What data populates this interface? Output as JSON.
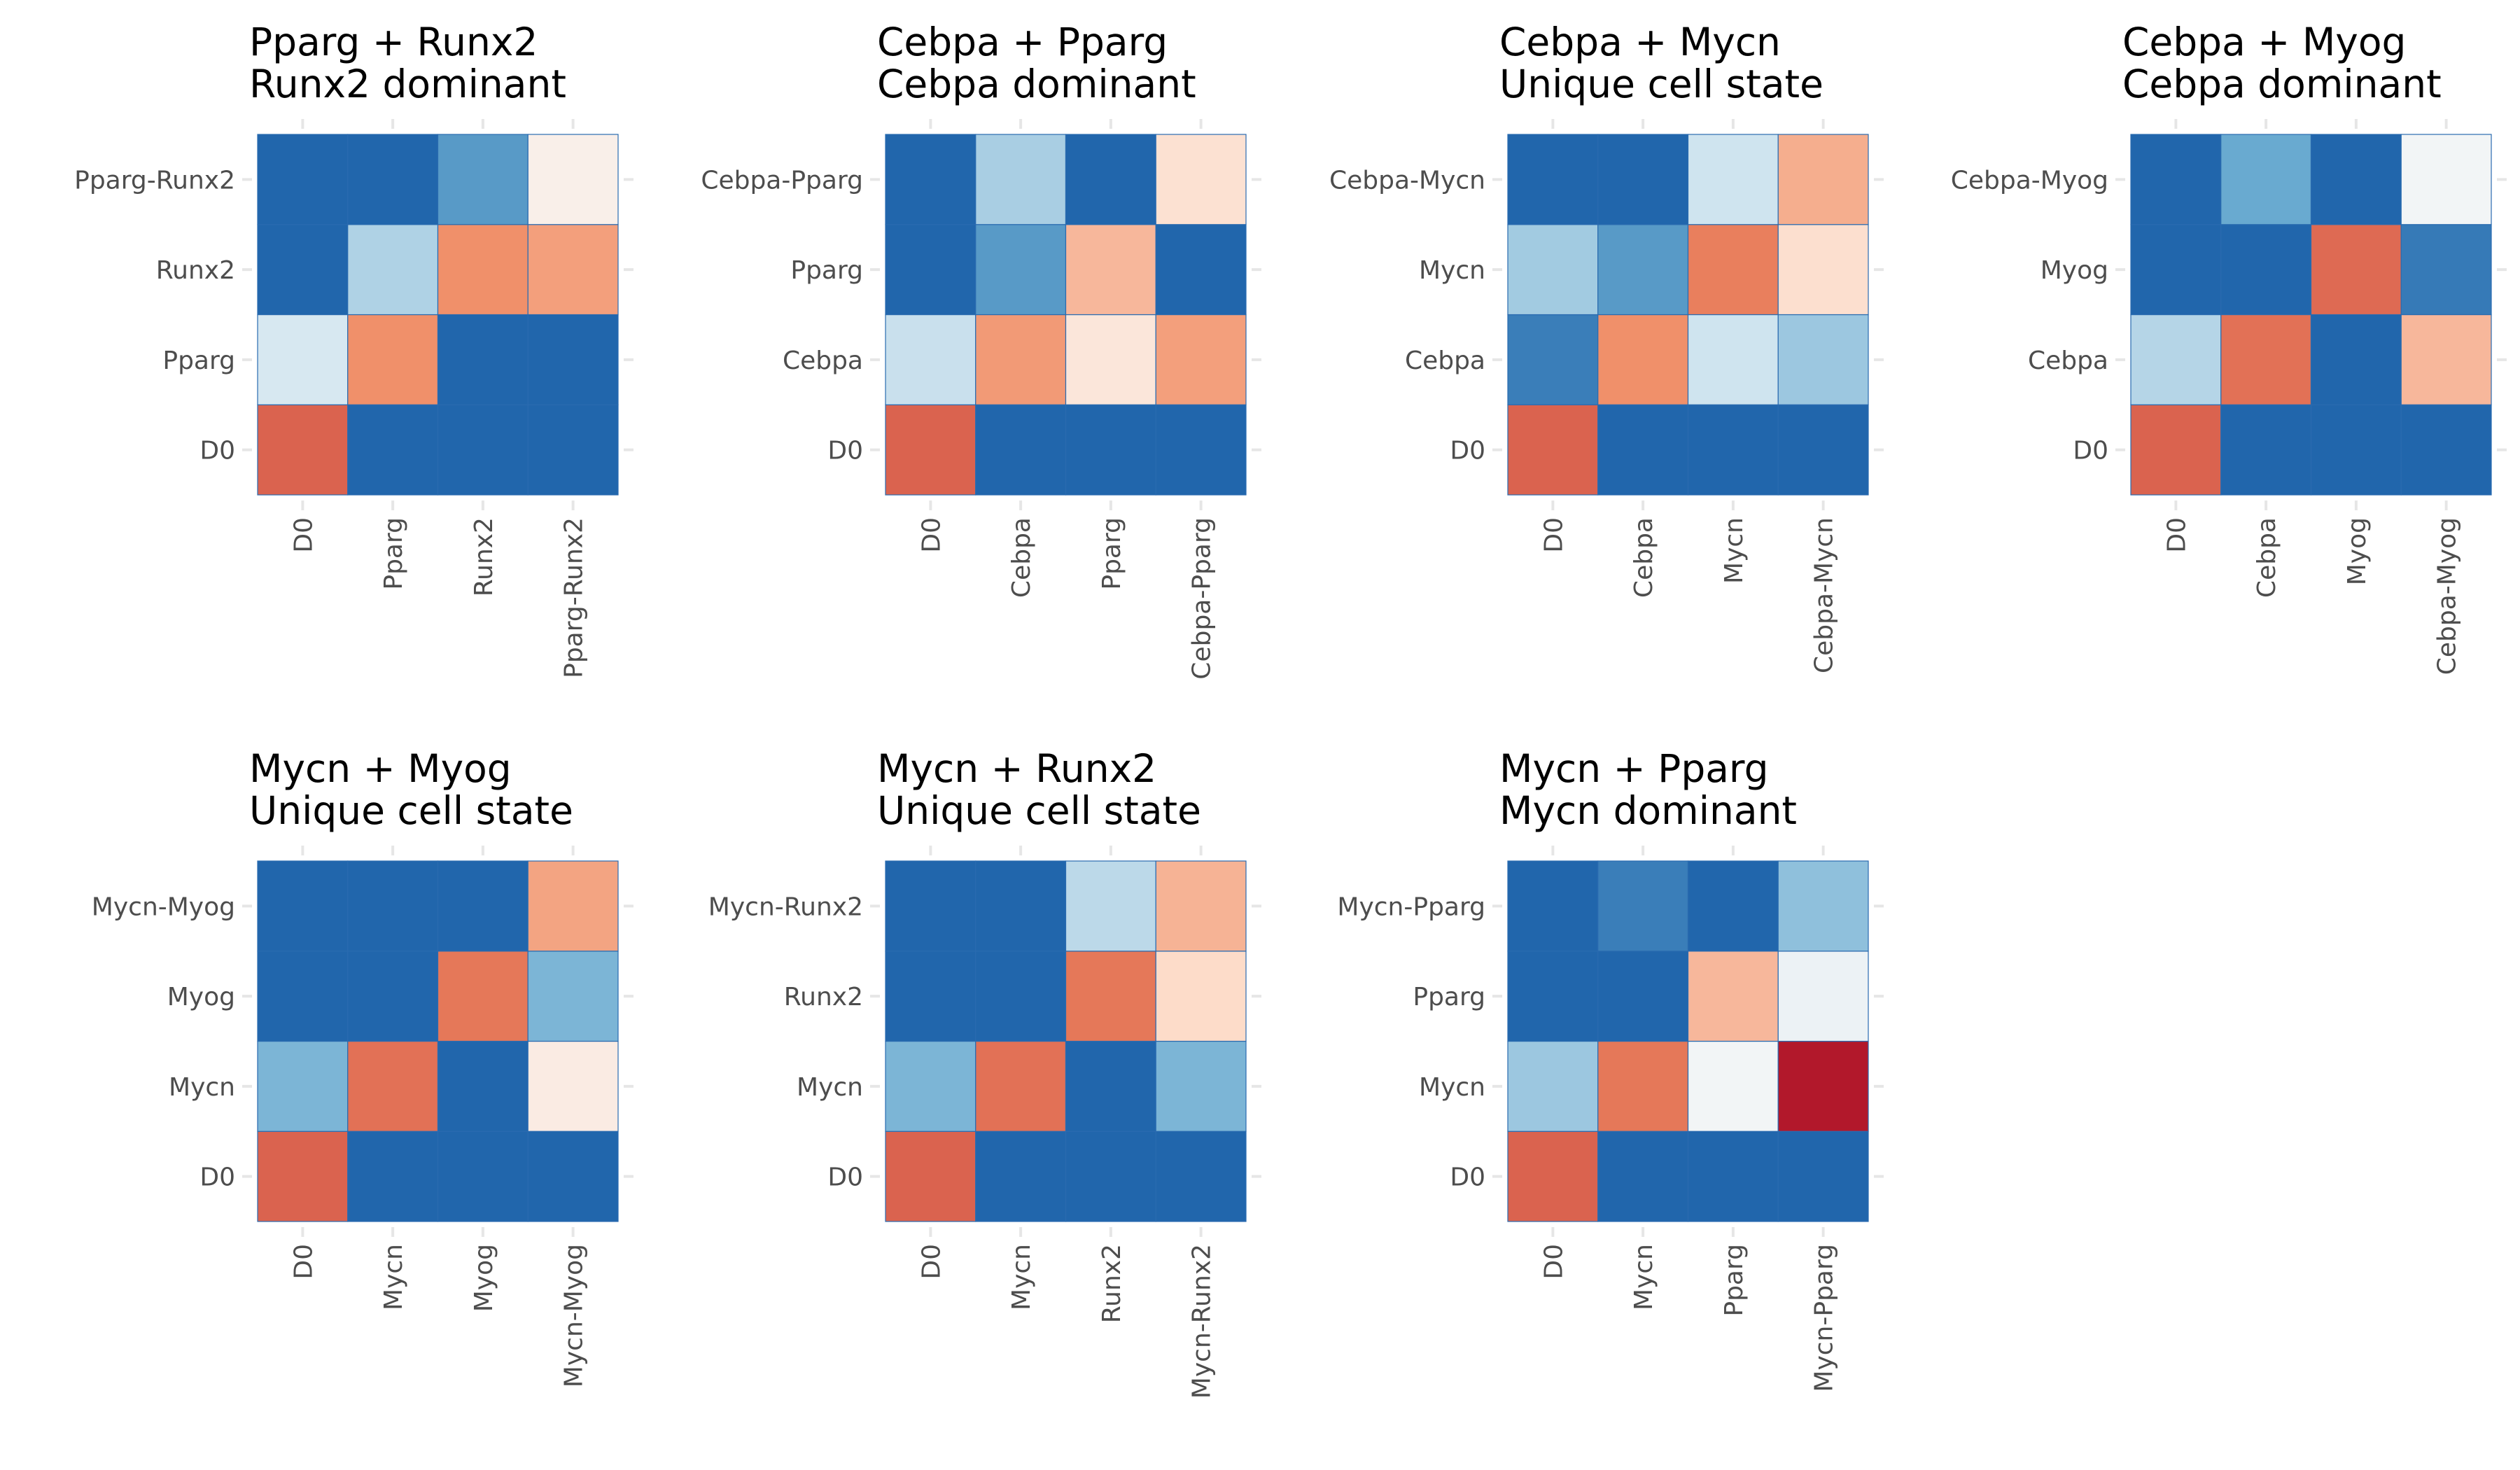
{
  "colors": {
    "scale": [
      "#b2182b",
      "#ef8a62",
      "#fddbc7",
      "#f7f7f7",
      "#d1e5f0",
      "#67a9cf",
      "#2166ac"
    ],
    "cell_border": "#2a6bb0",
    "tick_label": "#4d4d4d",
    "tick_mark": "#e6e6e6"
  },
  "chart_data": [
    {
      "type": "heatmap",
      "title": "Pparg + Runx2",
      "subtitle": "Runx2 dominant",
      "x_categories": [
        "D0",
        "Pparg",
        "Runx2",
        "Pparg-Runx2"
      ],
      "y_categories": [
        "D0",
        "Pparg",
        "Runx2",
        "Pparg-Runx2"
      ],
      "values": [
        [
          0.89,
          0.0,
          0.0,
          0.0
        ],
        [
          0.36,
          0.82,
          0.0,
          0.0
        ],
        [
          0.0,
          0.28,
          0.82,
          0.79
        ],
        [
          0.0,
          0.0,
          0.13,
          0.55
        ]
      ],
      "scale": "similarity (blue = low, red = high)"
    },
    {
      "type": "heatmap",
      "title": "Cebpa + Pparg",
      "subtitle": "Cebpa dominant",
      "x_categories": [
        "D0",
        "Cebpa",
        "Pparg",
        "Cebpa-Pparg"
      ],
      "y_categories": [
        "D0",
        "Cebpa",
        "Pparg",
        "Cebpa-Pparg"
      ],
      "values": [
        [
          0.89,
          0.0,
          0.0,
          0.0
        ],
        [
          0.32,
          0.8,
          0.6,
          0.79
        ],
        [
          0.0,
          0.13,
          0.74,
          0.0
        ],
        [
          0.0,
          0.27,
          0.0,
          0.63
        ]
      ],
      "scale": "similarity (blue = low, red = high)"
    },
    {
      "type": "heatmap",
      "title": "Cebpa + Mycn",
      "subtitle": "Unique cell state",
      "x_categories": [
        "D0",
        "Cebpa",
        "Mycn",
        "Cebpa-Mycn"
      ],
      "y_categories": [
        "D0",
        "Cebpa",
        "Mycn",
        "Cebpa-Mycn"
      ],
      "values": [
        [
          0.89,
          0.0,
          0.0,
          0.0
        ],
        [
          0.06,
          0.82,
          0.33,
          0.25
        ],
        [
          0.26,
          0.13,
          0.85,
          0.64
        ],
        [
          0.0,
          0.0,
          0.33,
          0.76
        ]
      ],
      "scale": "similarity (blue = low, red = high)"
    },
    {
      "type": "heatmap",
      "title": "Cebpa + Myog",
      "subtitle": "Cebpa dominant",
      "x_categories": [
        "D0",
        "Cebpa",
        "Myog",
        "Cebpa-Myog"
      ],
      "y_categories": [
        "D0",
        "Cebpa",
        "Myog",
        "Cebpa-Myog"
      ],
      "values": [
        [
          0.89,
          0.0,
          0.0,
          0.0
        ],
        [
          0.29,
          0.87,
          0.0,
          0.74
        ],
        [
          0.0,
          0.0,
          0.88,
          0.05
        ],
        [
          0.0,
          0.17,
          0.0,
          0.48
        ]
      ],
      "scale": "similarity (blue = low, red = high)"
    },
    {
      "type": "heatmap",
      "title": "Mycn + Myog",
      "subtitle": "Unique cell state",
      "x_categories": [
        "D0",
        "Mycn",
        "Myog",
        "Mycn-Myog"
      ],
      "y_categories": [
        "D0",
        "Mycn",
        "Myog",
        "Mycn-Myog"
      ],
      "values": [
        [
          0.89,
          0.0,
          0.0,
          0.0
        ],
        [
          0.2,
          0.87,
          0.0,
          0.57
        ],
        [
          0.0,
          0.0,
          0.86,
          0.2
        ],
        [
          0.0,
          0.0,
          0.0,
          0.78
        ]
      ],
      "scale": "similarity (blue = low, red = high)"
    },
    {
      "type": "heatmap",
      "title": "Mycn + Runx2",
      "subtitle": "Unique cell state",
      "x_categories": [
        "D0",
        "Mycn",
        "Runx2",
        "Mycn-Runx2"
      ],
      "y_categories": [
        "D0",
        "Mycn",
        "Runx2",
        "Mycn-Runx2"
      ],
      "values": [
        [
          0.89,
          0.0,
          0.0,
          0.0
        ],
        [
          0.2,
          0.87,
          0.0,
          0.2
        ],
        [
          0.0,
          0.0,
          0.86,
          0.66
        ],
        [
          0.0,
          0.0,
          0.3,
          0.75
        ]
      ],
      "scale": "similarity (blue = low, red = high)"
    },
    {
      "type": "heatmap",
      "title": "Mycn + Pparg",
      "subtitle": "Mycn dominant",
      "x_categories": [
        "D0",
        "Mycn",
        "Pparg",
        "Mycn-Pparg"
      ],
      "y_categories": [
        "D0",
        "Mycn",
        "Pparg",
        "Mycn-Pparg"
      ],
      "values": [
        [
          0.89,
          0.0,
          0.0,
          0.0
        ],
        [
          0.25,
          0.86,
          0.48,
          1.0
        ],
        [
          0.0,
          0.0,
          0.74,
          0.45
        ],
        [
          0.0,
          0.06,
          0.0,
          0.23
        ]
      ],
      "scale": "similarity (blue = low, red = high)"
    }
  ]
}
